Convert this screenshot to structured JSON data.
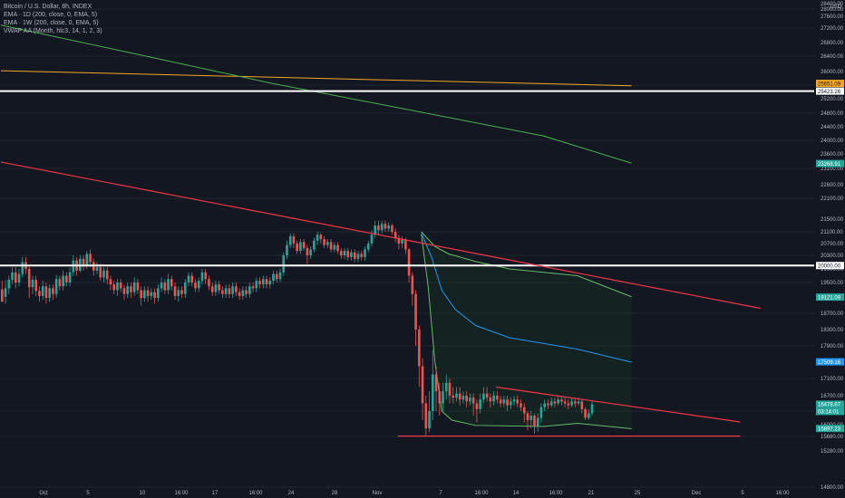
{
  "header": {
    "title": "Bitcoin / U.S. Dollar, 8h, INDEX",
    "indicators": [
      "EMA · 1D (200, close, 0, EMA, 5)",
      "EMA · 1W (200, close, 0, EMA, 5)",
      "VWAP AA (Month, hlc3, 14, 1, 2, 3)"
    ],
    "currency": "USD"
  },
  "colors": {
    "background": "#131722",
    "grid": "#1f2430",
    "up": "#26a69a",
    "down": "#ef5350",
    "trendline": "#f23645",
    "support": "#ffffff",
    "ema_1d": "#4caf50",
    "ema_1w": "#f5a623",
    "vwap_mid": "#2196f3",
    "vwap_band": "#66bb6a",
    "axis_text": "#b2b5be"
  },
  "chart_data": {
    "type": "candlestick",
    "title": "Bitcoin / U.S. Dollar, 8h, INDEX",
    "y_axis": {
      "unit": "USD",
      "ticks": [
        14800,
        15280,
        15680,
        16000,
        16300,
        16700,
        17100,
        17500,
        17900,
        18300,
        18700,
        19100,
        19500,
        19900,
        20300,
        20700,
        21100,
        21500,
        22100,
        22600,
        23100,
        23600,
        24000,
        24400,
        24800,
        25200,
        25600,
        26000,
        26400,
        26800,
        27200,
        27600,
        28000,
        28400
      ]
    },
    "x_axis": {
      "labels": [
        "Oct",
        "5",
        "10",
        "16:00",
        "17",
        "16:00",
        "24",
        "28",
        "Nov",
        "7",
        "16:00",
        "14",
        "16:00",
        "21",
        "25",
        "Dec",
        "5",
        "16:00"
      ]
    },
    "price_labels": [
      {
        "value": "25651.09",
        "kind": "ema_1w"
      },
      {
        "value": "25423.26",
        "kind": "support"
      },
      {
        "value": "23268.91",
        "kind": "ema_1d"
      },
      {
        "value": "20000.00",
        "kind": "support"
      },
      {
        "value": "19121.09",
        "kind": "vwap_upper"
      },
      {
        "value": "17509.16",
        "kind": "vwap_mid"
      },
      {
        "value": "16478.87",
        "kind": "last"
      },
      {
        "value": "03:14:01",
        "kind": "countdown"
      },
      {
        "value": "15897.23",
        "kind": "vwap_lower"
      }
    ],
    "horizontal_lines": [
      25423.26,
      20000
    ],
    "trendlines": [
      {
        "name": "upper_downtrend",
        "points": [
          [
            0,
            23320
          ],
          [
            224,
            18830
          ]
        ]
      },
      {
        "name": "lower_downtrend",
        "points": [
          [
            146,
            16900
          ],
          [
            218,
            16060
          ]
        ]
      },
      {
        "name": "support_floor",
        "points": [
          [
            117,
            15690
          ],
          [
            218,
            15690
          ]
        ]
      }
    ],
    "ema_1w": [
      [
        0,
        26020
      ],
      [
        186,
        25580
      ]
    ],
    "ema_1d": [
      [
        0,
        27300
      ],
      [
        40,
        26460
      ],
      [
        80,
        25650
      ],
      [
        120,
        24900
      ],
      [
        160,
        24130
      ],
      [
        186,
        23280
      ]
    ],
    "vwap_upper": [
      [
        124,
        21100
      ],
      [
        128,
        20600
      ],
      [
        132,
        20350
      ],
      [
        140,
        20120
      ],
      [
        150,
        19900
      ],
      [
        170,
        19700
      ],
      [
        186,
        19130
      ]
    ],
    "vwap_mid": [
      [
        124,
        21050
      ],
      [
        127,
        20250
      ],
      [
        130,
        19300
      ],
      [
        134,
        18800
      ],
      [
        140,
        18400
      ],
      [
        150,
        18100
      ],
      [
        170,
        17820
      ],
      [
        186,
        17500
      ]
    ],
    "vwap_lower": [
      [
        124,
        21000
      ],
      [
        126,
        19400
      ],
      [
        128,
        17500
      ],
      [
        130,
        16300
      ],
      [
        133,
        16100
      ],
      [
        140,
        15980
      ],
      [
        160,
        15950
      ],
      [
        170,
        16030
      ],
      [
        186,
        15890
      ]
    ],
    "candles": [
      [
        19320,
        19000,
        19560,
        19130
      ],
      [
        19130,
        19350,
        19570,
        18950
      ],
      [
        19350,
        19580,
        19700,
        19200
      ],
      [
        19580,
        19800,
        19950,
        19450
      ],
      [
        19800,
        19500,
        19950,
        19350
      ],
      [
        19500,
        19750,
        19900,
        19400
      ],
      [
        19750,
        20100,
        20250,
        19650
      ],
      [
        20100,
        19900,
        20250,
        19750
      ],
      [
        19900,
        19380,
        20000,
        19100
      ],
      [
        19380,
        19580,
        19700,
        19200
      ],
      [
        19580,
        19280,
        19700,
        19150
      ],
      [
        19280,
        19150,
        19400,
        19000
      ],
      [
        19150,
        19400,
        19550,
        19050
      ],
      [
        19400,
        19100,
        19500,
        18950
      ],
      [
        19100,
        19350,
        19450,
        19000
      ],
      [
        19350,
        19200,
        19450,
        19050
      ],
      [
        19200,
        19600,
        19720,
        19100
      ],
      [
        19600,
        19400,
        19700,
        19300
      ],
      [
        19400,
        19700,
        19850,
        19300
      ],
      [
        19700,
        19500,
        19800,
        19400
      ],
      [
        19500,
        19800,
        19950,
        19400
      ],
      [
        19800,
        20150,
        20300,
        19700
      ],
      [
        20150,
        19850,
        20250,
        19700
      ],
      [
        19850,
        20200,
        20300,
        19800
      ],
      [
        20200,
        20000,
        20300,
        19850
      ],
      [
        20000,
        20350,
        20450,
        19900
      ],
      [
        20350,
        20100,
        20500,
        19950
      ],
      [
        20100,
        19850,
        20200,
        19700
      ],
      [
        19850,
        19950,
        20100,
        19750
      ],
      [
        19950,
        19650,
        20050,
        19550
      ],
      [
        19650,
        19850,
        19950,
        19500
      ],
      [
        19850,
        19600,
        19950,
        19450
      ],
      [
        19600,
        19450,
        19700,
        19300
      ],
      [
        19450,
        19300,
        19550,
        19200
      ],
      [
        19300,
        19500,
        19600,
        19150
      ],
      [
        19500,
        19350,
        19600,
        19250
      ],
      [
        19350,
        19200,
        19450,
        19050
      ],
      [
        19200,
        19400,
        19500,
        19100
      ],
      [
        19400,
        19250,
        19500,
        19100
      ],
      [
        19250,
        19500,
        19650,
        19150
      ],
      [
        19500,
        19300,
        19600,
        19200
      ],
      [
        19300,
        19100,
        19400,
        18900
      ],
      [
        19100,
        19300,
        19400,
        19000
      ],
      [
        19300,
        19150,
        19400,
        19000
      ],
      [
        19150,
        19250,
        19350,
        19050
      ],
      [
        19250,
        19100,
        19350,
        18950
      ],
      [
        19100,
        19350,
        19450,
        19000
      ],
      [
        19350,
        19500,
        19650,
        19250
      ],
      [
        19500,
        19300,
        19600,
        19200
      ],
      [
        19300,
        19600,
        19750,
        19200
      ],
      [
        19600,
        19400,
        19700,
        19300
      ],
      [
        19400,
        19150,
        19500,
        19050
      ],
      [
        19150,
        19300,
        19400,
        19000
      ],
      [
        19300,
        19200,
        19400,
        19100
      ],
      [
        19200,
        19500,
        19600,
        19100
      ],
      [
        19500,
        19700,
        19800,
        19400
      ],
      [
        19700,
        19500,
        19800,
        19400
      ],
      [
        19500,
        19350,
        19600,
        19250
      ],
      [
        19350,
        19550,
        19650,
        19250
      ],
      [
        19550,
        19800,
        19900,
        19450
      ],
      [
        19800,
        19600,
        19900,
        19450
      ],
      [
        19600,
        19400,
        19700,
        19300
      ],
      [
        19400,
        19250,
        19500,
        19150
      ],
      [
        19250,
        19450,
        19550,
        19150
      ],
      [
        19450,
        19300,
        19550,
        19200
      ],
      [
        19300,
        19200,
        19400,
        19100
      ],
      [
        19200,
        19350,
        19450,
        19100
      ],
      [
        19350,
        19200,
        19450,
        19100
      ],
      [
        19200,
        19400,
        19500,
        19100
      ],
      [
        19400,
        19250,
        19500,
        19150
      ],
      [
        19250,
        19150,
        19350,
        19050
      ],
      [
        19150,
        19300,
        19400,
        19050
      ],
      [
        19300,
        19200,
        19400,
        19100
      ],
      [
        19200,
        19400,
        19500,
        19100
      ],
      [
        19400,
        19350,
        19500,
        19250
      ],
      [
        19350,
        19550,
        19650,
        19250
      ],
      [
        19550,
        19450,
        19650,
        19350
      ],
      [
        19450,
        19600,
        19700,
        19350
      ],
      [
        19600,
        19450,
        19700,
        19350
      ],
      [
        19450,
        19550,
        19650,
        19350
      ],
      [
        19550,
        19750,
        19850,
        19450
      ],
      [
        19750,
        19600,
        19850,
        19500
      ],
      [
        19600,
        19800,
        19900,
        19500
      ],
      [
        19800,
        20300,
        20400,
        19700
      ],
      [
        20300,
        20650,
        20800,
        20200
      ],
      [
        20650,
        20950,
        21050,
        20550
      ],
      [
        20950,
        20700,
        21050,
        20550
      ],
      [
        20700,
        20450,
        20800,
        20350
      ],
      [
        20450,
        20750,
        20850,
        20350
      ],
      [
        20750,
        20550,
        20850,
        20450
      ],
      [
        20550,
        20300,
        20650,
        20050
      ],
      [
        20300,
        20500,
        20600,
        20200
      ],
      [
        20500,
        20800,
        20900,
        20400
      ],
      [
        20800,
        21000,
        21100,
        20650
      ],
      [
        21000,
        20850,
        21050,
        20700
      ],
      [
        20850,
        20650,
        20950,
        20550
      ],
      [
        20650,
        20750,
        20850,
        20550
      ],
      [
        20750,
        20500,
        20850,
        20400
      ],
      [
        20500,
        20650,
        20750,
        20400
      ],
      [
        20650,
        20450,
        20750,
        20350
      ],
      [
        20450,
        20300,
        20550,
        20200
      ],
      [
        20300,
        20450,
        20550,
        20200
      ],
      [
        20450,
        20250,
        20550,
        20150
      ],
      [
        20250,
        20400,
        20500,
        20150
      ],
      [
        20400,
        20200,
        20500,
        20100
      ],
      [
        20200,
        20350,
        20450,
        20100
      ],
      [
        20350,
        20250,
        20450,
        20150
      ],
      [
        20250,
        20500,
        20600,
        20150
      ],
      [
        20500,
        20700,
        20800,
        20400
      ],
      [
        20700,
        21000,
        21150,
        20600
      ],
      [
        21000,
        21300,
        21450,
        20900
      ],
      [
        21300,
        21150,
        21450,
        21000
      ],
      [
        21150,
        21350,
        21450,
        21050
      ],
      [
        21350,
        21200,
        21450,
        21100
      ],
      [
        21200,
        21300,
        21400,
        21100
      ],
      [
        21300,
        21100,
        21350,
        21000
      ],
      [
        21100,
        20900,
        21200,
        20750
      ],
      [
        20900,
        20700,
        21000,
        20500
      ],
      [
        20700,
        20850,
        20950,
        20550
      ],
      [
        20850,
        20500,
        20900,
        20350
      ],
      [
        20500,
        19700,
        20550,
        19500
      ],
      [
        19700,
        19200,
        19800,
        18900
      ],
      [
        19200,
        18300,
        19300,
        17900
      ],
      [
        18300,
        17400,
        18400,
        16900
      ],
      [
        17400,
        16500,
        17600,
        16100
      ],
      [
        16500,
        15900,
        16700,
        15700
      ],
      [
        15900,
        16300,
        16800,
        15800
      ],
      [
        16300,
        17200,
        17800,
        16100
      ],
      [
        17200,
        16800,
        17400,
        16300
      ],
      [
        16800,
        16500,
        17000,
        16200
      ],
      [
        16500,
        16800,
        17000,
        16300
      ],
      [
        16800,
        17000,
        17200,
        16600
      ],
      [
        17000,
        16700,
        17100,
        16500
      ],
      [
        16700,
        16650,
        16900,
        16500
      ],
      [
        16650,
        16750,
        16900,
        16550
      ],
      [
        16750,
        16600,
        16900,
        16450
      ],
      [
        16600,
        16700,
        16800,
        16500
      ],
      [
        16700,
        16550,
        16800,
        16400
      ],
      [
        16550,
        16650,
        16750,
        16450
      ],
      [
        16650,
        16500,
        16750,
        16200
      ],
      [
        16500,
        16350,
        16600,
        16050
      ],
      [
        16350,
        16600,
        16750,
        16250
      ],
      [
        16600,
        16750,
        16900,
        16500
      ],
      [
        16750,
        16650,
        16900,
        16550
      ],
      [
        16650,
        16550,
        16750,
        16400
      ],
      [
        16550,
        16700,
        16800,
        16450
      ],
      [
        16700,
        16600,
        16800,
        16500
      ],
      [
        16600,
        16500,
        16700,
        16400
      ],
      [
        16500,
        16600,
        16700,
        16400
      ],
      [
        16600,
        16450,
        16700,
        16300
      ],
      [
        16450,
        16550,
        16650,
        16350
      ],
      [
        16550,
        16600,
        16700,
        16450
      ],
      [
        16600,
        16500,
        16700,
        16400
      ],
      [
        16500,
        16400,
        16600,
        16300
      ],
      [
        16400,
        16250,
        16500,
        16050
      ],
      [
        16250,
        16100,
        16300,
        15850
      ],
      [
        16100,
        16200,
        16300,
        15900
      ],
      [
        16200,
        15950,
        16250,
        15750
      ],
      [
        15950,
        16150,
        16250,
        15800
      ],
      [
        16150,
        16400,
        16500,
        16050
      ],
      [
        16400,
        16500,
        16600,
        16300
      ],
      [
        16500,
        16450,
        16600,
        16350
      ],
      [
        16450,
        16550,
        16650,
        16400
      ],
      [
        16550,
        16500,
        16650,
        16400
      ],
      [
        16500,
        16600,
        16700,
        16450
      ],
      [
        16600,
        16550,
        16700,
        16450
      ],
      [
        16550,
        16500,
        16650,
        16400
      ],
      [
        16500,
        16450,
        16600,
        16350
      ],
      [
        16450,
        16550,
        16650,
        16400
      ],
      [
        16550,
        16500,
        16650,
        16400
      ],
      [
        16500,
        16550,
        16650,
        16450
      ],
      [
        16550,
        16350,
        16600,
        16250
      ],
      [
        16350,
        16150,
        16400,
        16100
      ],
      [
        16150,
        16250,
        16350,
        16100
      ],
      [
        16250,
        16478,
        16550,
        16200
      ]
    ]
  }
}
